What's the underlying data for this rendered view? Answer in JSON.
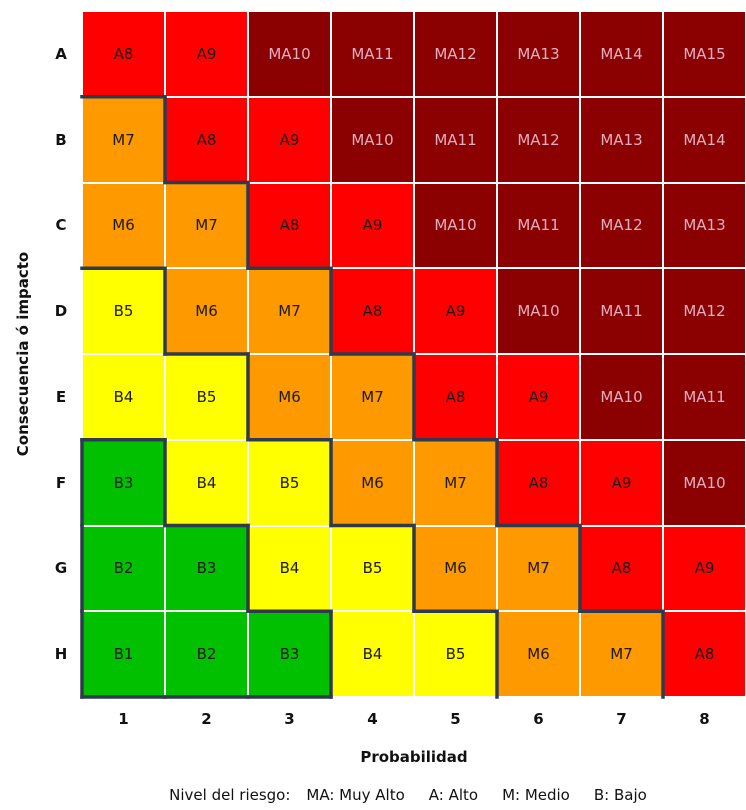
{
  "chart_data": {
    "type": "heatmap",
    "title": "",
    "xlabel": "Probabilidad",
    "ylabel": "Consecuencia ó impacto",
    "x_categories": [
      "1",
      "2",
      "3",
      "4",
      "5",
      "6",
      "7",
      "8"
    ],
    "y_categories": [
      "A",
      "B",
      "C",
      "D",
      "E",
      "F",
      "G",
      "H"
    ],
    "cells": [
      [
        "A8",
        "A9",
        "MA10",
        "MA11",
        "MA12",
        "MA13",
        "MA14",
        "MA15"
      ],
      [
        "M7",
        "A8",
        "A9",
        "MA10",
        "MA11",
        "MA12",
        "MA13",
        "MA14"
      ],
      [
        "M6",
        "M7",
        "A8",
        "A9",
        "MA10",
        "MA11",
        "MA12",
        "MA13"
      ],
      [
        "B5",
        "M6",
        "M7",
        "A8",
        "A9",
        "MA10",
        "MA11",
        "MA12"
      ],
      [
        "B4",
        "B5",
        "M6",
        "M7",
        "A8",
        "A9",
        "MA10",
        "MA11"
      ],
      [
        "B3",
        "B4",
        "B5",
        "M6",
        "M7",
        "A8",
        "A9",
        "MA10"
      ],
      [
        "B2",
        "B3",
        "B4",
        "B5",
        "M6",
        "M7",
        "A8",
        "A9"
      ],
      [
        "B1",
        "B2",
        "B3",
        "B4",
        "B5",
        "M6",
        "M7",
        "A8"
      ]
    ],
    "level_colors": {
      "MA": "#8b0000",
      "A": "#ff0000",
      "M": "#ff9900",
      "B": "#ffff00",
      "B_low": "#00c000"
    },
    "boundary_color": "#2e3b4e",
    "legend": {
      "title": "Nivel del riesgo:",
      "items": [
        "MA: Muy Alto",
        "A: Alto",
        "M: Medio",
        "B: Bajo"
      ]
    }
  }
}
